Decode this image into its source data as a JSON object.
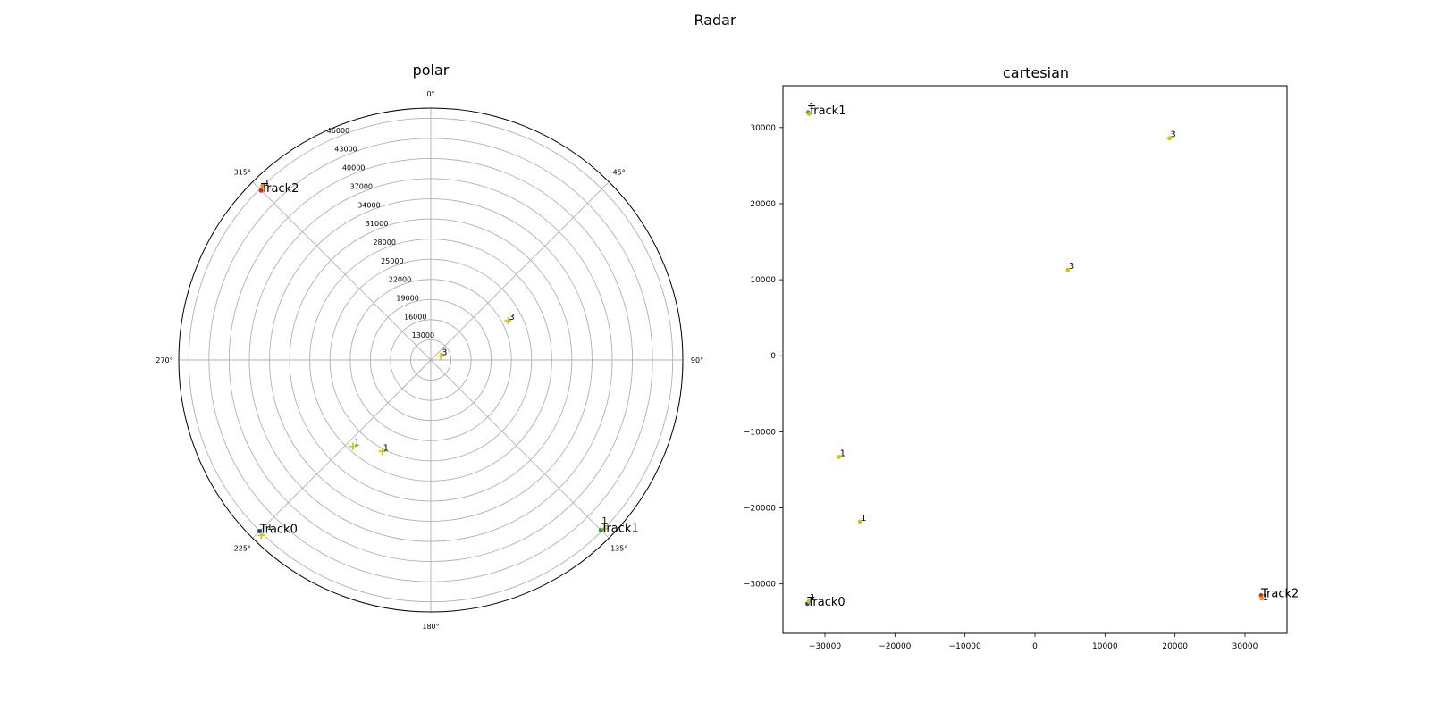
{
  "figure_title": "Radar",
  "chart_data": [
    {
      "type": "scatter",
      "subtype": "polar",
      "title": "polar",
      "theta_direction": "clockwise",
      "theta_zero": "top",
      "theta_tick_labels": [
        "0°",
        "45°",
        "90°",
        "135°",
        "180°",
        "225°",
        "270°",
        "315°"
      ],
      "theta_tick_degrees": [
        0,
        45,
        90,
        135,
        180,
        225,
        270,
        315
      ],
      "r_tick_labels": [
        "13000",
        "16000",
        "19000",
        "22000",
        "25000",
        "28000",
        "31000",
        "34000",
        "37000",
        "40000",
        "43000",
        "46000"
      ],
      "r_ticks": [
        13000,
        16000,
        19000,
        22000,
        25000,
        28000,
        31000,
        34000,
        37000,
        40000,
        43000,
        46000
      ],
      "r_lim": [
        10000,
        47500
      ],
      "grid": true,
      "points": [
        {
          "theta": 225,
          "r": 46000,
          "color": "#1f3fbf",
          "marker": "dot"
        },
        {
          "theta": 224,
          "r": 46300,
          "color": "#d4c400",
          "marker": "plus"
        },
        {
          "theta": 135,
          "r": 45800,
          "color": "#2ca02c",
          "marker": "dot"
        },
        {
          "theta": 134,
          "r": 46100,
          "color": "#d4c400",
          "marker": "plus"
        },
        {
          "theta": 315,
          "r": 45700,
          "color": "#d62728",
          "marker": "dot"
        },
        {
          "theta": 316,
          "r": 46000,
          "color": "#ff8c00",
          "marker": "dot"
        },
        {
          "theta": 222,
          "r": 27300,
          "color": "#d4c400",
          "marker": "plus"
        },
        {
          "theta": 208,
          "r": 25400,
          "color": "#d4c400",
          "marker": "plus"
        },
        {
          "theta": 63,
          "r": 22900,
          "color": "#d4c400",
          "marker": "plus"
        },
        {
          "theta": 68,
          "r": 11600,
          "color": "#d4c400",
          "marker": "plus"
        }
      ],
      "labels": [
        {
          "theta": 225,
          "r": 46000,
          "text": "Track0",
          "size": "large"
        },
        {
          "theta": 224,
          "r": 45300,
          "text": "1",
          "size": "small"
        },
        {
          "theta": 135,
          "r": 45800,
          "text": "Track1",
          "size": "large"
        },
        {
          "theta": 134,
          "r": 45200,
          "text": "1",
          "size": "small"
        },
        {
          "theta": 315,
          "r": 45700,
          "text": "Track2",
          "size": "large"
        },
        {
          "theta": 316,
          "r": 45900,
          "text": "1",
          "size": "small"
        },
        {
          "theta": 222,
          "r": 27300,
          "text": "1",
          "size": "small"
        },
        {
          "theta": 208,
          "r": 25400,
          "text": "1",
          "size": "small"
        },
        {
          "theta": 63,
          "r": 22900,
          "text": "3",
          "size": "small"
        },
        {
          "theta": 68,
          "r": 11600,
          "text": "3",
          "size": "small"
        }
      ]
    },
    {
      "type": "scatter",
      "subtype": "cartesian",
      "title": "cartesian",
      "xlim": [
        -36000,
        36000
      ],
      "ylim": [
        -36500,
        35500
      ],
      "x_ticks": [
        -30000,
        -20000,
        -10000,
        0,
        10000,
        20000,
        30000
      ],
      "x_tick_labels": [
        "−30000",
        "−20000",
        "−10000",
        "0",
        "10000",
        "20000",
        "30000"
      ],
      "y_ticks": [
        -30000,
        -20000,
        -10000,
        0,
        10000,
        20000,
        30000
      ],
      "y_tick_labels": [
        "−30000",
        "−20000",
        "−10000",
        "0",
        "10000",
        "20000",
        "30000"
      ],
      "grid": false,
      "points": [
        {
          "x": -32500,
          "y": -32600,
          "color": "#1f3fbf"
        },
        {
          "x": -32300,
          "y": -32300,
          "color": "#d4c400"
        },
        {
          "x": -32400,
          "y": 32000,
          "color": "#2ca02c"
        },
        {
          "x": -32300,
          "y": 31800,
          "color": "#d4c400"
        },
        {
          "x": 32300,
          "y": -31500,
          "color": "#d62728"
        },
        {
          "x": 32400,
          "y": -31900,
          "color": "#ff8c00"
        },
        {
          "x": -28000,
          "y": -13300,
          "color": "#d4c400"
        },
        {
          "x": -25000,
          "y": -21800,
          "color": "#d4c400"
        },
        {
          "x": 19200,
          "y": 28600,
          "color": "#d4c400"
        },
        {
          "x": 4700,
          "y": 11300,
          "color": "#d4c400"
        }
      ],
      "labels": [
        {
          "x": -32500,
          "y": -32600,
          "text": "Track0",
          "size": "large"
        },
        {
          "x": -32300,
          "y": -32300,
          "text": "1",
          "size": "small"
        },
        {
          "x": -32400,
          "y": 32000,
          "text": "Track1",
          "size": "large"
        },
        {
          "x": -32400,
          "y": 32300,
          "text": "1",
          "size": "small"
        },
        {
          "x": 32300,
          "y": -31500,
          "text": "Track2",
          "size": "large"
        },
        {
          "x": 32400,
          "y": -32300,
          "text": "1",
          "size": "small"
        },
        {
          "x": -28000,
          "y": -13300,
          "text": "1",
          "size": "small"
        },
        {
          "x": -25000,
          "y": -21800,
          "text": "1",
          "size": "small"
        },
        {
          "x": 19200,
          "y": 28600,
          "text": "3",
          "size": "small"
        },
        {
          "x": 4700,
          "y": 11300,
          "text": "3",
          "size": "small"
        }
      ]
    }
  ]
}
